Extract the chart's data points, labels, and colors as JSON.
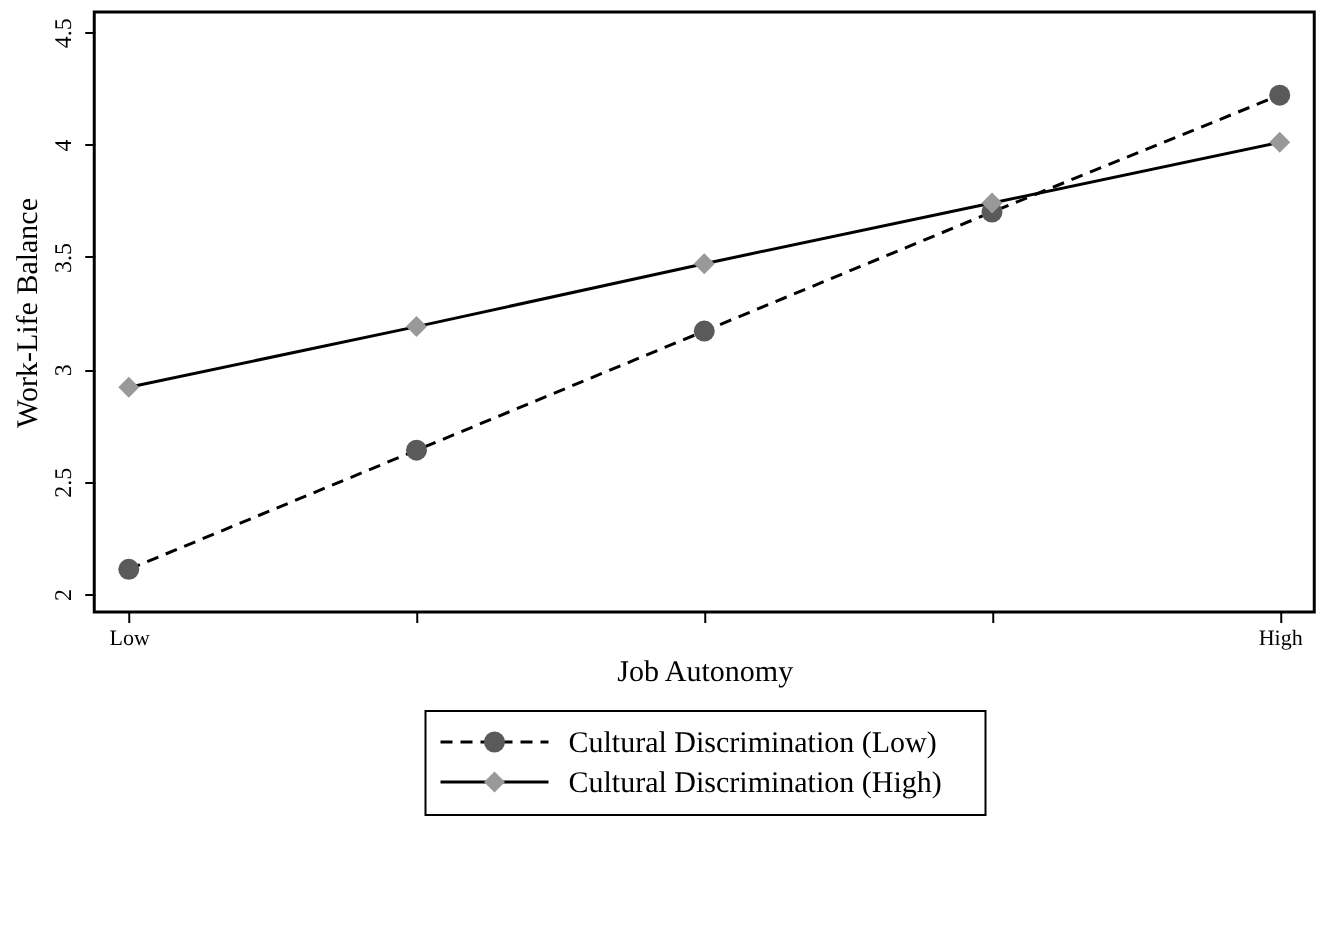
{
  "chart_data": {
    "type": "line",
    "xlabel": "Job Autonomy",
    "ylabel": "Work-Life Balance",
    "categories": [
      "Low",
      null,
      null,
      null,
      "High"
    ],
    "series": [
      {
        "name": "Cultural Discrimination (Low)",
        "color": "#5a5a5a",
        "values": [
          2.11,
          2.64,
          3.17,
          3.7,
          4.22
        ],
        "marker": "circle",
        "line_style": "dashed"
      },
      {
        "name": "Cultural Discrimination (High)",
        "color": "#999999",
        "values": [
          2.92,
          3.19,
          3.47,
          3.74,
          4.01
        ],
        "marker": "diamond",
        "line_style": "solid"
      }
    ],
    "ylim": [
      1.92,
      4.59
    ],
    "yticks": [
      2,
      2.5,
      3,
      3.5,
      4,
      4.5
    ],
    "grid": false,
    "legend": "bottom"
  }
}
